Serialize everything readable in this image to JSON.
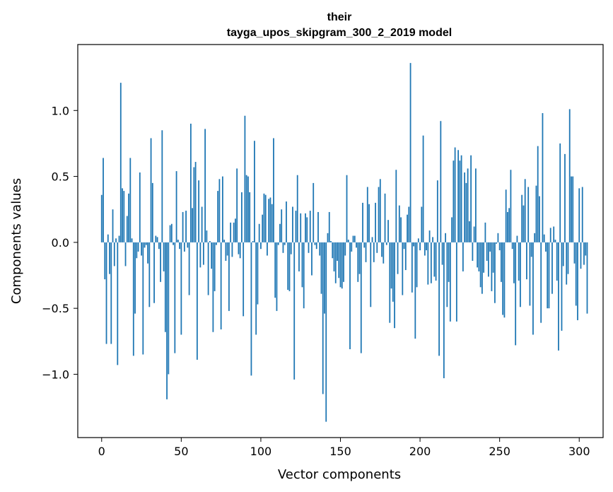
{
  "chart_data": {
    "type": "bar",
    "title_line1": "their",
    "title_line2": "tayga_upos_skipgram_300_2_2019 model",
    "xlabel": "Vector components",
    "ylabel": "Components values",
    "xlim": [
      -15,
      315
    ],
    "ylim": [
      -1.48,
      1.5
    ],
    "xticks": [
      0,
      50,
      100,
      150,
      200,
      250,
      300
    ],
    "yticks": [
      -1.0,
      -0.5,
      0.0,
      0.5,
      1.0
    ],
    "ytick_labels": [
      "−1.0",
      "−0.5",
      "0.0",
      "0.5",
      "1.0"
    ],
    "bar_color": "#1f77b4",
    "values": [
      0.36,
      0.64,
      -0.28,
      -0.77,
      0.06,
      -0.24,
      -0.77,
      0.25,
      -0.18,
      0.03,
      -0.93,
      0.05,
      1.21,
      0.41,
      0.39,
      -0.18,
      0.2,
      0.37,
      0.64,
      0.03,
      -0.86,
      -0.54,
      -0.12,
      -0.07,
      0.53,
      -0.1,
      -0.85,
      -0.04,
      -0.02,
      -0.16,
      -0.49,
      0.79,
      0.45,
      -0.46,
      0.05,
      0.04,
      -0.05,
      -0.3,
      0.85,
      -0.22,
      -0.68,
      -1.19,
      -1.0,
      0.13,
      0.14,
      -0.02,
      -0.84,
      0.54,
      0.02,
      -0.05,
      -0.7,
      0.23,
      -0.07,
      0.24,
      -0.04,
      -0.4,
      0.9,
      0.26,
      0.57,
      0.61,
      -0.89,
      0.47,
      -0.19,
      0.27,
      -0.17,
      0.86,
      0.09,
      -0.4,
      0.01,
      -0.2,
      -0.68,
      -0.37,
      -0.02,
      0.39,
      0.48,
      -0.66,
      0.5,
      0.02,
      -0.14,
      -0.1,
      -0.52,
      0.15,
      -0.11,
      0.15,
      0.18,
      0.56,
      -0.09,
      -0.12,
      0.38,
      -0.56,
      0.96,
      0.51,
      0.5,
      0.38,
      -1.01,
      0.01,
      0.77,
      -0.7,
      -0.47,
      0.14,
      -0.05,
      0.21,
      0.37,
      0.36,
      -0.1,
      0.33,
      0.34,
      0.29,
      0.79,
      -0.42,
      -0.52,
      -0.02,
      0.14,
      0.25,
      -0.08,
      -0.02,
      0.31,
      -0.36,
      -0.37,
      -0.09,
      0.27,
      -1.04,
      0.24,
      0.51,
      -0.22,
      0.22,
      -0.34,
      -0.5,
      0.22,
      0.19,
      -0.08,
      0.24,
      -0.25,
      0.45,
      -0.02,
      -0.05,
      0.23,
      -0.1,
      -0.39,
      -1.15,
      -0.54,
      -1.36,
      0.07,
      0.23,
      0.01,
      -0.12,
      -0.22,
      -0.31,
      -0.14,
      -0.27,
      -0.34,
      -0.35,
      -0.3,
      -0.1,
      0.51,
      0.02,
      -0.81,
      -0.07,
      0.05,
      0.05,
      -0.04,
      -0.3,
      -0.24,
      -0.84,
      0.3,
      -0.04,
      -0.15,
      0.42,
      0.29,
      -0.49,
      0.04,
      -0.15,
      0.3,
      -0.08,
      0.42,
      0.48,
      -0.11,
      -0.16,
      0.37,
      -0.02,
      0.17,
      -0.61,
      -0.35,
      -0.45,
      -0.65,
      0.55,
      -0.24,
      0.28,
      0.19,
      -0.4,
      -0.05,
      -0.21,
      0.21,
      0.27,
      1.36,
      -0.38,
      -0.03,
      -0.73,
      -0.34,
      0.03,
      -0.06,
      0.27,
      0.81,
      -0.1,
      -0.06,
      -0.32,
      0.09,
      -0.31,
      0.04,
      -0.26,
      -0.29,
      0.47,
      -0.86,
      0.92,
      -0.17,
      -1.03,
      0.07,
      -0.49,
      -0.3,
      -0.6,
      0.19,
      0.62,
      0.72,
      -0.6,
      0.7,
      0.62,
      0.66,
      -0.22,
      0.53,
      0.45,
      0.56,
      0.16,
      0.66,
      -0.14,
      0.12,
      0.56,
      -0.19,
      -0.22,
      -0.34,
      -0.39,
      -0.23,
      0.15,
      -0.14,
      -0.26,
      -0.07,
      -0.37,
      -0.23,
      -0.46,
      -0.01,
      0.07,
      -0.06,
      -0.3,
      -0.55,
      -0.57,
      0.4,
      0.23,
      0.26,
      0.55,
      -0.05,
      -0.31,
      -0.78,
      0.05,
      -0.29,
      -0.49,
      0.36,
      0.28,
      0.48,
      -0.28,
      0.42,
      -0.48,
      -0.11,
      -0.7,
      0.07,
      0.43,
      0.73,
      0.35,
      -0.61,
      0.98,
      0.06,
      -0.07,
      -0.5,
      -0.5,
      0.11,
      -0.39,
      0.12,
      0.02,
      -0.29,
      -0.82,
      0.75,
      -0.67,
      -0.18,
      0.67,
      -0.32,
      -0.24,
      1.01,
      0.5,
      0.5,
      -0.16,
      -0.48,
      -0.59,
      0.41,
      -0.2,
      0.42,
      -0.17,
      -0.1,
      -0.54
    ]
  }
}
